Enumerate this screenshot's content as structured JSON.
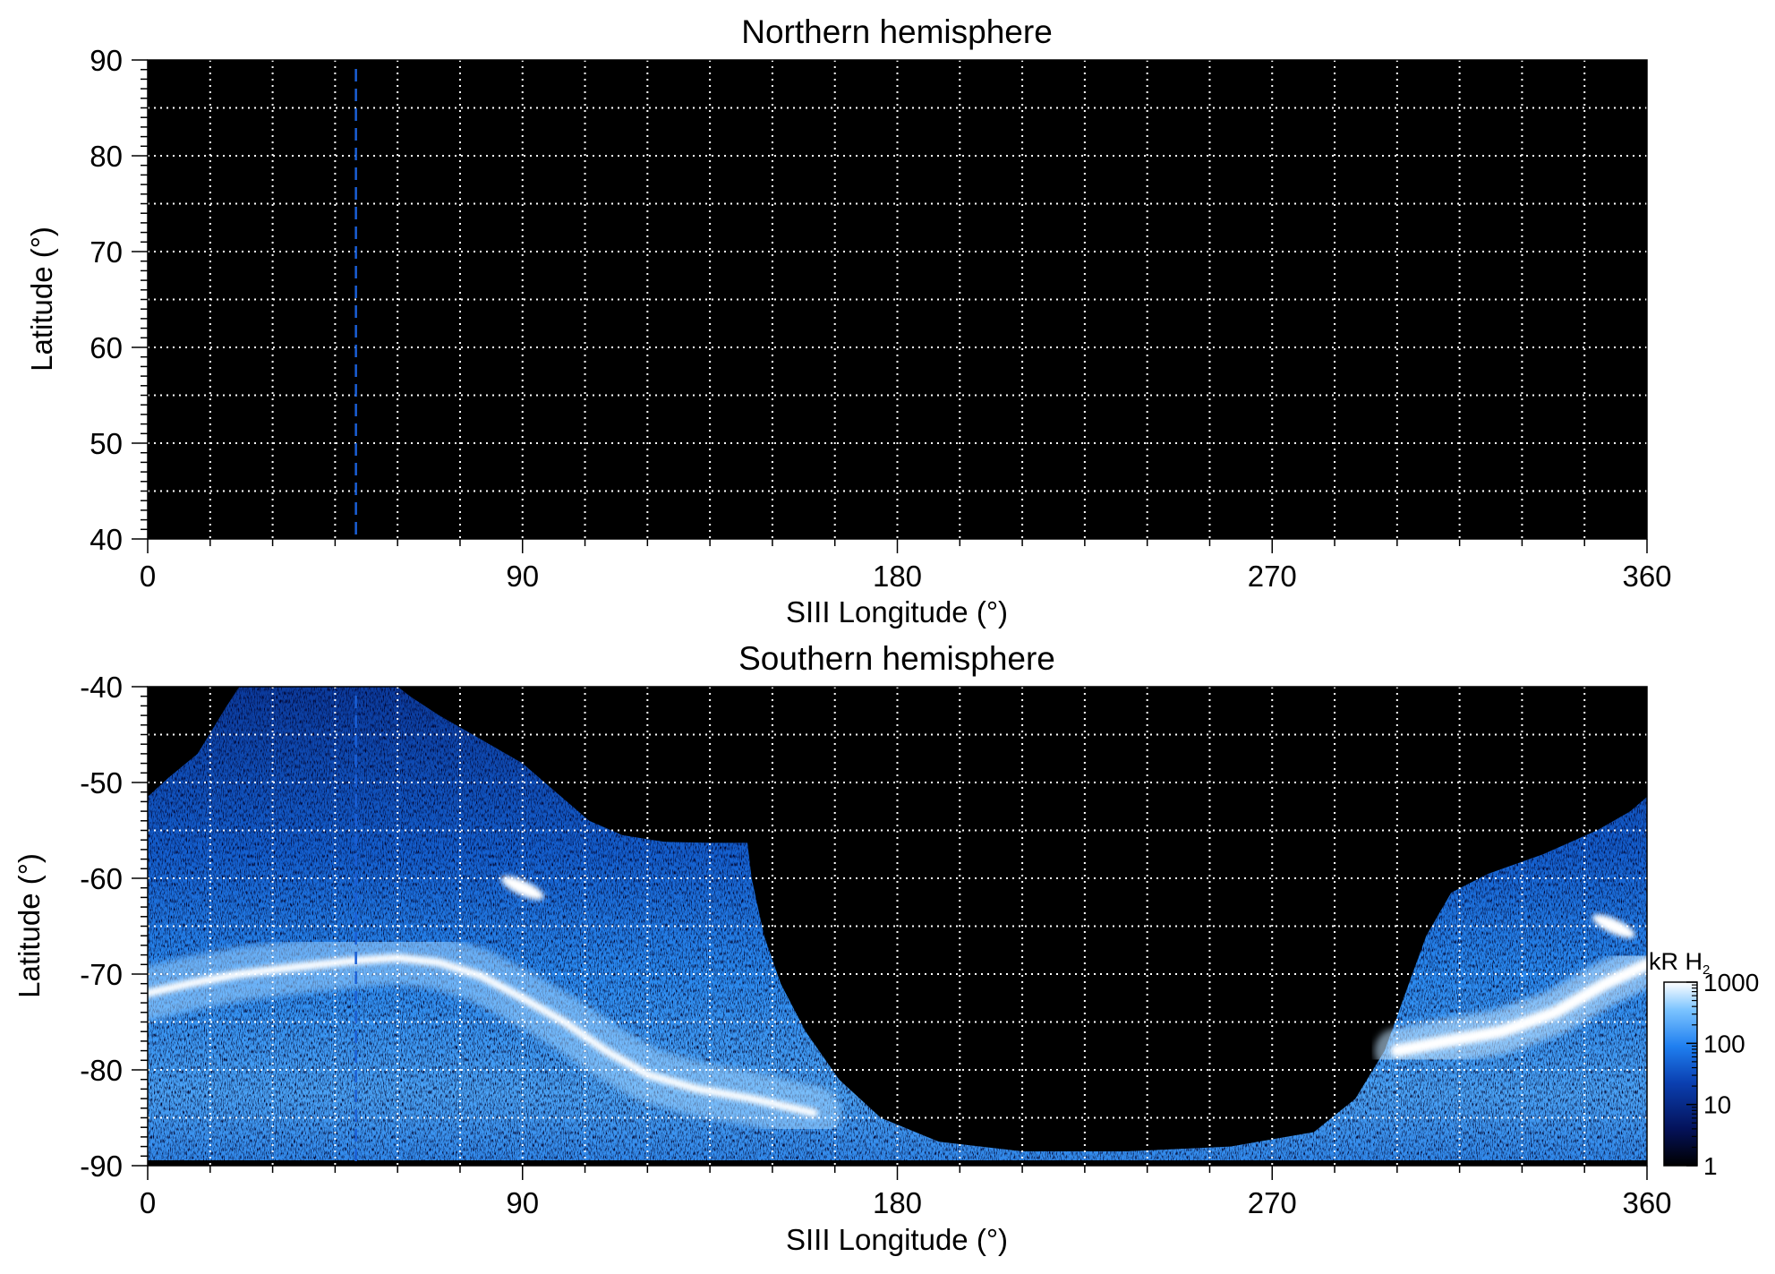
{
  "figure": {
    "colorbar": {
      "unit_label": "kR H",
      "unit_subscript": "2",
      "tick_labels": [
        "1",
        "10",
        "100",
        "1000"
      ]
    }
  },
  "chart_data": [
    {
      "type": "heatmap",
      "title": "Northern hemisphere",
      "xlabel": "SIII Longitude (°)",
      "ylabel": "Latitude (°)",
      "xlim": [
        0,
        360
      ],
      "ylim": [
        40,
        90
      ],
      "xticks": [
        0,
        90,
        180,
        270,
        360
      ],
      "yticks": [
        40,
        50,
        60,
        70,
        80,
        90
      ],
      "grid": true,
      "background": "#000000",
      "emission": "none",
      "marker_line": {
        "x": 50,
        "style": "dashed",
        "color": "#1a5fd6"
      }
    },
    {
      "type": "heatmap",
      "title": "Southern hemisphere",
      "xlabel": "SIII Longitude (°)",
      "ylabel": "Latitude (°)",
      "xlim": [
        0,
        360
      ],
      "ylim": [
        -90,
        -40
      ],
      "xticks": [
        0,
        90,
        180,
        270,
        360
      ],
      "yticks": [
        -90,
        -80,
        -70,
        -60,
        -50,
        -40
      ],
      "grid": true,
      "background": "#000000",
      "colorscale": "log",
      "colormap": [
        "#000000",
        "#04125a",
        "#0a3fb0",
        "#1f7ff0",
        "#7cc4ff",
        "#ffffff"
      ],
      "zlim": [
        1,
        1000
      ],
      "emission_boundary": [
        {
          "x": 0,
          "y": -51.5
        },
        {
          "x": 5,
          "y": -49.5
        },
        {
          "x": 12,
          "y": -47
        },
        {
          "x": 19,
          "y": -42
        },
        {
          "x": 22,
          "y": -40
        },
        {
          "x": 60,
          "y": -40
        },
        {
          "x": 63,
          "y": -41
        },
        {
          "x": 70,
          "y": -43
        },
        {
          "x": 80,
          "y": -45.5
        },
        {
          "x": 90,
          "y": -48
        },
        {
          "x": 98,
          "y": -51
        },
        {
          "x": 106,
          "y": -54
        },
        {
          "x": 114,
          "y": -55.5
        },
        {
          "x": 124,
          "y": -56.2
        },
        {
          "x": 135,
          "y": -56.3
        },
        {
          "x": 144,
          "y": -56.3
        },
        {
          "x": 145,
          "y": -60
        },
        {
          "x": 148,
          "y": -66
        },
        {
          "x": 152,
          "y": -71
        },
        {
          "x": 158,
          "y": -76
        },
        {
          "x": 166,
          "y": -81
        },
        {
          "x": 176,
          "y": -85
        },
        {
          "x": 190,
          "y": -87.5
        },
        {
          "x": 210,
          "y": -88.5
        },
        {
          "x": 235,
          "y": -88.5
        },
        {
          "x": 260,
          "y": -88
        },
        {
          "x": 280,
          "y": -86.5
        },
        {
          "x": 290,
          "y": -83
        },
        {
          "x": 297,
          "y": -78
        },
        {
          "x": 302,
          "y": -72
        },
        {
          "x": 307,
          "y": -66
        },
        {
          "x": 313,
          "y": -61.5
        },
        {
          "x": 322,
          "y": -59.5
        },
        {
          "x": 335,
          "y": -57.5
        },
        {
          "x": 348,
          "y": -55
        },
        {
          "x": 356,
          "y": -53
        },
        {
          "x": 360,
          "y": -51.5
        }
      ],
      "main_oval": [
        {
          "x": 0,
          "y": -72
        },
        {
          "x": 10,
          "y": -71
        },
        {
          "x": 22,
          "y": -70
        },
        {
          "x": 35,
          "y": -69.3
        },
        {
          "x": 50,
          "y": -68.6
        },
        {
          "x": 60,
          "y": -68.3
        },
        {
          "x": 70,
          "y": -68.8
        },
        {
          "x": 80,
          "y": -70.2
        },
        {
          "x": 90,
          "y": -72.5
        },
        {
          "x": 100,
          "y": -75
        },
        {
          "x": 110,
          "y": -78
        },
        {
          "x": 120,
          "y": -80.5
        },
        {
          "x": 132,
          "y": -82
        },
        {
          "x": 145,
          "y": -83
        },
        {
          "x": 160,
          "y": -84.5
        }
      ],
      "oval_east": [
        {
          "x": 300,
          "y": -78
        },
        {
          "x": 312,
          "y": -77
        },
        {
          "x": 325,
          "y": -76
        },
        {
          "x": 338,
          "y": -74
        },
        {
          "x": 350,
          "y": -71
        },
        {
          "x": 360,
          "y": -69
        }
      ],
      "spot_features": [
        {
          "x": 90,
          "y": -61,
          "note": "bright spot"
        },
        {
          "x": 352,
          "y": -65,
          "note": "bright arc"
        }
      ],
      "marker_line": {
        "x": 50,
        "style": "dashed",
        "color": "#1a5fd6"
      }
    }
  ]
}
